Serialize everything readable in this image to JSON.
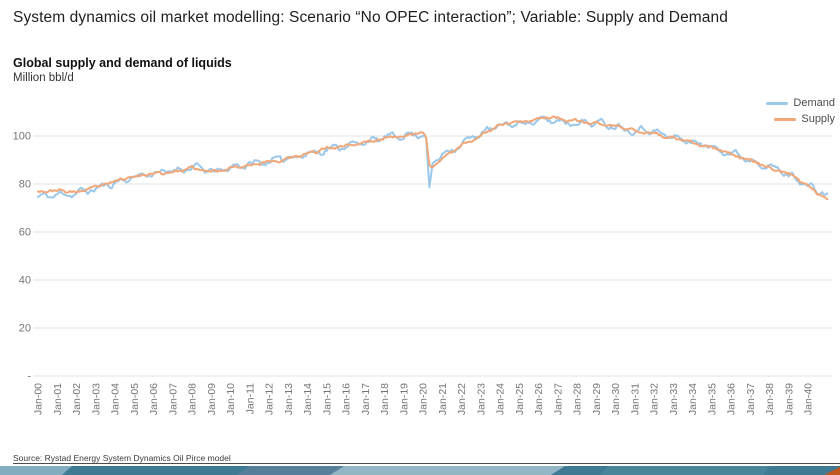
{
  "header": {
    "title": "System dynamics oil market modelling: Scenario “No OPEC interaction”; Variable: Supply and Demand"
  },
  "chart": {
    "title": "Global supply and demand of liquids",
    "unit_label": "Million bbl/d"
  },
  "footer": {
    "source": "Source: Rystad Energy System Dynamics Oil Pirce model"
  },
  "chart_data": {
    "type": "line",
    "title": "Global supply and demand of liquids",
    "ylabel": "Million bbl/d",
    "ylim": [
      0,
      115
    ],
    "yticks": [
      0,
      20,
      40,
      60,
      80,
      100
    ],
    "ytick_labels": [
      "-",
      "20",
      "40",
      "60",
      "80",
      "100"
    ],
    "x_domain_years": [
      2000,
      2041
    ],
    "x_resolution": "monthly",
    "grid": "horizontal",
    "legend_position": "top-right",
    "xtick_labels": [
      "Jan-00",
      "Jan-01",
      "Jan-02",
      "Jan-03",
      "Jan-04",
      "Jan-05",
      "Jan-06",
      "Jan-07",
      "Jan-08",
      "Jan-09",
      "Jan-10",
      "Jan-11",
      "Jan-12",
      "Jan-13",
      "Jan-14",
      "Jan-15",
      "Jan-16",
      "Jan-17",
      "Jan-18",
      "Jan-19",
      "Jan-20",
      "Jan-21",
      "Jan-22",
      "Jan-23",
      "Jan-24",
      "Jan-25",
      "Jan-26",
      "Jan-27",
      "Jan-28",
      "Jan-29",
      "Jan-30",
      "Jan-31",
      "Jan-32",
      "Jan-33",
      "Jan-34",
      "Jan-35",
      "Jan-36",
      "Jan-37",
      "Jan-38",
      "Jan-39",
      "Jan-40"
    ],
    "series": [
      {
        "name": "Demand",
        "color": "#9cc8e9",
        "anchors": [
          [
            2000,
            74.5
          ],
          [
            2001,
            75.5
          ],
          [
            2002,
            76.2
          ],
          [
            2003,
            78
          ],
          [
            2004,
            80.5
          ],
          [
            2005,
            83
          ],
          [
            2006,
            84.5
          ],
          [
            2007,
            85.5
          ],
          [
            2008,
            87
          ],
          [
            2008.7,
            86
          ],
          [
            2009.3,
            84.8
          ],
          [
            2010,
            87
          ],
          [
            2011,
            88.3
          ],
          [
            2012,
            89.5
          ],
          [
            2013,
            91
          ],
          [
            2014,
            92.5
          ],
          [
            2015,
            94.5
          ],
          [
            2016,
            96
          ],
          [
            2017,
            97.5
          ],
          [
            2018,
            99.3
          ],
          [
            2019,
            100.3
          ],
          [
            2019.8,
            100.8
          ],
          [
            2020.15,
            100.8
          ],
          [
            2020.33,
            78.2
          ],
          [
            2020.5,
            88.5
          ],
          [
            2020.8,
            91
          ],
          [
            2021,
            92
          ],
          [
            2022,
            97
          ],
          [
            2023,
            101
          ],
          [
            2024,
            104.3
          ],
          [
            2025,
            105.3
          ],
          [
            2026,
            106.3
          ],
          [
            2027,
            106.5
          ],
          [
            2027.5,
            105.5
          ],
          [
            2028,
            105.8
          ],
          [
            2029,
            105.5
          ],
          [
            2030,
            104.3
          ],
          [
            2031,
            102.3
          ],
          [
            2031.7,
            103.2
          ],
          [
            2032.3,
            100.8
          ],
          [
            2033,
            99.5
          ],
          [
            2034,
            97.5
          ],
          [
            2035,
            95.5
          ],
          [
            2036,
            93
          ],
          [
            2037,
            90.3
          ],
          [
            2038,
            87.3
          ],
          [
            2039,
            84
          ],
          [
            2040,
            79.5
          ],
          [
            2040.5,
            76.3
          ],
          [
            2041,
            76.6
          ]
        ]
      },
      {
        "name": "Supply",
        "color": "#f2a778",
        "anchors": [
          [
            2000,
            77
          ],
          [
            2001,
            77.3
          ],
          [
            2002,
            76.5
          ],
          [
            2003,
            78.5
          ],
          [
            2004,
            81
          ],
          [
            2005,
            83.5
          ],
          [
            2006,
            84.3
          ],
          [
            2007,
            85
          ],
          [
            2008,
            86.5
          ],
          [
            2009,
            85
          ],
          [
            2010,
            86.8
          ],
          [
            2011,
            88
          ],
          [
            2012,
            89.3
          ],
          [
            2013,
            90.5
          ],
          [
            2014,
            92.5
          ],
          [
            2015,
            95
          ],
          [
            2016,
            96
          ],
          [
            2017,
            97.3
          ],
          [
            2018,
            99
          ],
          [
            2019,
            100.3
          ],
          [
            2019.8,
            101
          ],
          [
            2020.15,
            100.3
          ],
          [
            2020.33,
            88
          ],
          [
            2020.45,
            86.8
          ],
          [
            2021,
            90.5
          ],
          [
            2022,
            96.3
          ],
          [
            2023,
            100.3
          ],
          [
            2024,
            104.8
          ],
          [
            2025,
            106
          ],
          [
            2026,
            107.3
          ],
          [
            2026.6,
            108
          ],
          [
            2027.2,
            107
          ],
          [
            2028,
            106
          ],
          [
            2029,
            105.3
          ],
          [
            2030,
            104
          ],
          [
            2031,
            102.3
          ],
          [
            2032,
            101
          ],
          [
            2033,
            99
          ],
          [
            2034,
            97
          ],
          [
            2035,
            95
          ],
          [
            2036,
            92.5
          ],
          [
            2037,
            90
          ],
          [
            2038,
            87
          ],
          [
            2039,
            84
          ],
          [
            2040,
            79.3
          ],
          [
            2041,
            73.3
          ]
        ]
      }
    ]
  }
}
